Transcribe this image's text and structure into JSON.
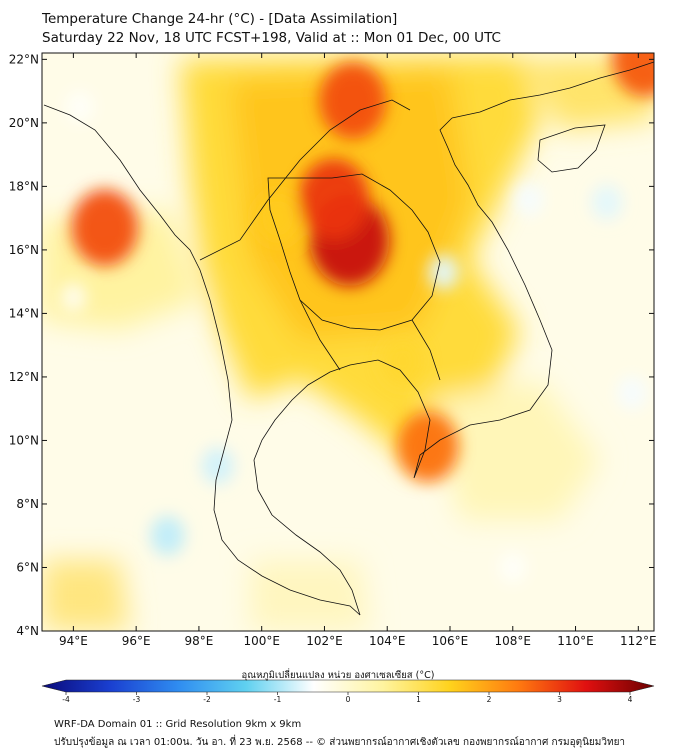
{
  "title": {
    "line1": "Temperature Change 24-hr (°C) - [Data Assimilation]",
    "line2": "Saturday 22 Nov, 18 UTC FCST+198, Valid at :: Mon 01 Dec, 00 UTC"
  },
  "map": {
    "lat_labels": [
      "22°N",
      "20°N",
      "18°N",
      "16°N",
      "14°N",
      "12°N",
      "10°N",
      "8°N",
      "6°N",
      "4°N"
    ],
    "lon_labels": [
      "94°E",
      "96°E",
      "98°E",
      "100°E",
      "102°E",
      "104°E",
      "106°E",
      "108°E",
      "110°E",
      "112°E"
    ],
    "lat_values": [
      22,
      20,
      18,
      16,
      14,
      12,
      10,
      8,
      6,
      4
    ],
    "lon_values": [
      94,
      96,
      98,
      100,
      102,
      104,
      106,
      108,
      110,
      112
    ],
    "bounds": {
      "lon_min": 93.0,
      "lon_max": 112.5,
      "lat_min": 4.0,
      "lat_max": 22.2
    },
    "anomalies": [
      {
        "name": "northeast-thailand-max",
        "lon": 102.8,
        "lat": 16.3,
        "value": 3.3
      },
      {
        "name": "northeast-thailand-north",
        "lon": 102.3,
        "lat": 17.6,
        "value": 2.8
      },
      {
        "name": "northern-laos",
        "lon": 102.9,
        "lat": 20.7,
        "value": 2.6
      },
      {
        "name": "myanmar-west-coast",
        "lon": 95.0,
        "lat": 16.7,
        "value": 2.6
      },
      {
        "name": "mekong-delta",
        "lon": 105.3,
        "lat": 9.8,
        "value": 2.3
      },
      {
        "name": "gulf-of-tonkin-ne",
        "lon": 112.2,
        "lat": 22.0,
        "value": 2.5
      },
      {
        "name": "central-thailand",
        "lon": 100.5,
        "lat": 17.0,
        "value": 1.4
      },
      {
        "name": "cambodia",
        "lon": 104.5,
        "lat": 12.5,
        "value": 1.2
      },
      {
        "name": "andaman-sea",
        "lon": 97.0,
        "lat": 7.0,
        "value": -0.8
      },
      {
        "name": "southern-thailand-west",
        "lon": 98.6,
        "lat": 9.2,
        "value": -0.7
      },
      {
        "name": "laos-vietnam-border",
        "lon": 105.8,
        "lat": 15.3,
        "value": -0.6
      },
      {
        "name": "gulf-of-tonkin",
        "lon": 108.5,
        "lat": 17.6,
        "value": -0.5
      },
      {
        "name": "south-china-sea-ne",
        "lon": 111.0,
        "lat": 17.5,
        "value": -0.6
      },
      {
        "name": "bay-of-bengal-north",
        "lon": 94.2,
        "lat": 20.5,
        "value": -0.4
      },
      {
        "name": "south-china-sea-east",
        "lon": 111.8,
        "lat": 11.5,
        "value": -0.5
      },
      {
        "name": "south-china-sea-south",
        "lon": 108.0,
        "lat": 6.0,
        "value": -0.4
      },
      {
        "name": "bay-of-bengal-south",
        "lon": 94.0,
        "lat": 14.5,
        "value": -0.3
      }
    ]
  },
  "colorbar": {
    "label": "อุณหภูมิเปลี่ยนแปลง หน่วย องศาเซลเซียส (°C)",
    "tick_labels": [
      "-4",
      "-3",
      "-2",
      "-1",
      "0",
      "1",
      "2",
      "3",
      "4"
    ],
    "tick_values": [
      -4,
      -3,
      -2,
      -1,
      0,
      1,
      2,
      3,
      4
    ],
    "min": -4,
    "max": 4,
    "colors": [
      "#0a0a7a",
      "#1a3fd0",
      "#2f8cf0",
      "#5fd0f0",
      "#ffffff",
      "#fff4a0",
      "#ffd21c",
      "#ff7a10",
      "#e01010",
      "#6a0000"
    ]
  },
  "footer": {
    "line1": "WRF-DA Domain 01 :: Grid Resolution 9km x 9km",
    "line2": "ปรับปรุงข้อมูล ณ เวลา 01:00น. วัน อา. ที่ 23 พ.ย. 2568 -- © ส่วนพยากรณ์อากาศเชิงตัวเลข กองพยากรณ์อากาศ กรมอุตุนิยมวิทยา"
  }
}
